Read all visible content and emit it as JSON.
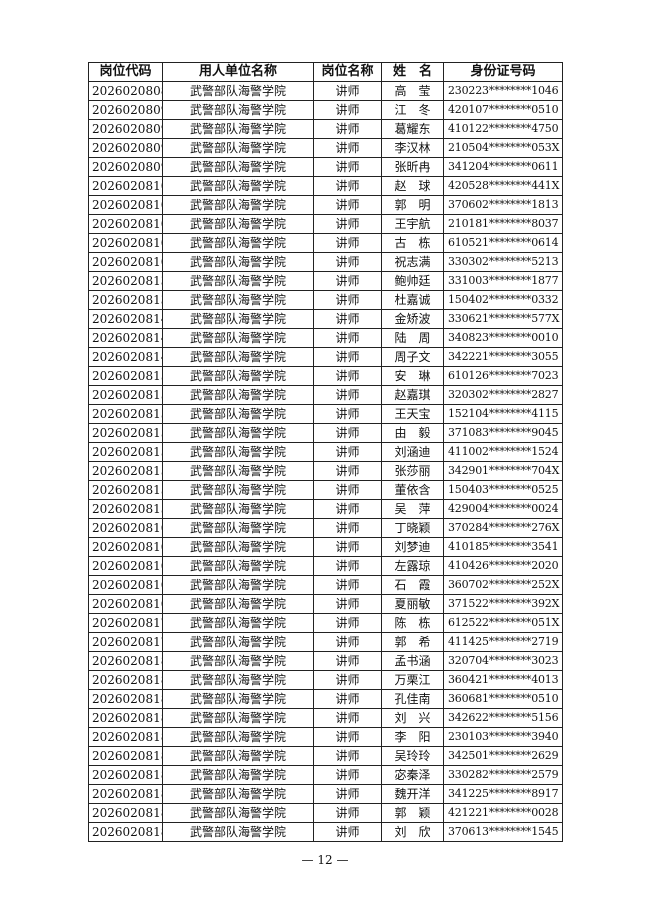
{
  "table": {
    "headers": [
      "岗位代码",
      "用人单位名称",
      "岗位名称",
      "姓　名",
      "身份证号码"
    ],
    "rows": [
      [
        "2026020808",
        "武警部队海警学院",
        "讲师",
        "高莹",
        "230223********1046"
      ],
      [
        "2026020809",
        "武警部队海警学院",
        "讲师",
        "江冬",
        "420107********0510"
      ],
      [
        "2026020809",
        "武警部队海警学院",
        "讲师",
        "葛耀东",
        "410122********4750"
      ],
      [
        "2026020809",
        "武警部队海警学院",
        "讲师",
        "李汉林",
        "210504********053X"
      ],
      [
        "2026020809",
        "武警部队海警学院",
        "讲师",
        "张昕冉",
        "341204********0611"
      ],
      [
        "2026020810",
        "武警部队海警学院",
        "讲师",
        "赵球",
        "420528********441X"
      ],
      [
        "2026020810",
        "武警部队海警学院",
        "讲师",
        "郭明",
        "370602********1813"
      ],
      [
        "2026020810",
        "武警部队海警学院",
        "讲师",
        "王宇航",
        "210181********8037"
      ],
      [
        "2026020810",
        "武警部队海警学院",
        "讲师",
        "古栋",
        "610521********0614"
      ],
      [
        "2026020810",
        "武警部队海警学院",
        "讲师",
        "祝志满",
        "330302********5213"
      ],
      [
        "2026020813",
        "武警部队海警学院",
        "讲师",
        "鲍帅廷",
        "331003********1877"
      ],
      [
        "2026020813",
        "武警部队海警学院",
        "讲师",
        "杜嘉诚",
        "150402********0332"
      ],
      [
        "2026020814",
        "武警部队海警学院",
        "讲师",
        "金矫波",
        "330621********577X"
      ],
      [
        "2026020814",
        "武警部队海警学院",
        "讲师",
        "陆周",
        "340823********0010"
      ],
      [
        "2026020814",
        "武警部队海警学院",
        "讲师",
        "周子文",
        "342221********3055"
      ],
      [
        "2026020815",
        "武警部队海警学院",
        "讲师",
        "安琳",
        "610126********7023"
      ],
      [
        "2026020815",
        "武警部队海警学院",
        "讲师",
        "赵嘉琪",
        "320302********2827"
      ],
      [
        "2026020815",
        "武警部队海警学院",
        "讲师",
        "王天宝",
        "152104********4115"
      ],
      [
        "2026020815",
        "武警部队海警学院",
        "讲师",
        "由毅",
        "371083********9045"
      ],
      [
        "2026020815",
        "武警部队海警学院",
        "讲师",
        "刘涵迪",
        "411002********1524"
      ],
      [
        "2026020815",
        "武警部队海警学院",
        "讲师",
        "张莎丽",
        "342901********704X"
      ],
      [
        "2026020815",
        "武警部队海警学院",
        "讲师",
        "董依含",
        "150403********0525"
      ],
      [
        "2026020815",
        "武警部队海警学院",
        "讲师",
        "吴萍",
        "429004********0024"
      ],
      [
        "2026020816",
        "武警部队海警学院",
        "讲师",
        "丁晓颖",
        "370284********276X"
      ],
      [
        "2026020816",
        "武警部队海警学院",
        "讲师",
        "刘梦迪",
        "410185********3541"
      ],
      [
        "2026020816",
        "武警部队海警学院",
        "讲师",
        "左露琼",
        "410426********2020"
      ],
      [
        "2026020816",
        "武警部队海警学院",
        "讲师",
        "石霞",
        "360702********252X"
      ],
      [
        "2026020816",
        "武警部队海警学院",
        "讲师",
        "夏丽敏",
        "371522********392X"
      ],
      [
        "2026020817",
        "武警部队海警学院",
        "讲师",
        "陈栋",
        "612522********051X"
      ],
      [
        "2026020817",
        "武警部队海警学院",
        "讲师",
        "郭希",
        "411425********2719"
      ],
      [
        "2026020818",
        "武警部队海警学院",
        "讲师",
        "孟书涵",
        "320704********3023"
      ],
      [
        "2026020818",
        "武警部队海警学院",
        "讲师",
        "万栗江",
        "360421********4013"
      ],
      [
        "2026020818",
        "武警部队海警学院",
        "讲师",
        "孔佳南",
        "360681********0510"
      ],
      [
        "2026020818",
        "武警部队海警学院",
        "讲师",
        "刘兴",
        "342622********5156"
      ],
      [
        "2026020818",
        "武警部队海警学院",
        "讲师",
        "李阳",
        "230103********3940"
      ],
      [
        "2026020818",
        "武警部队海警学院",
        "讲师",
        "吴玲玲",
        "342501********2629"
      ],
      [
        "2026020818",
        "武警部队海警学院",
        "讲师",
        "宓秦泽",
        "330282********2579"
      ],
      [
        "2026020818",
        "武警部队海警学院",
        "讲师",
        "魏开洋",
        "341225********8917"
      ],
      [
        "2026020818",
        "武警部队海警学院",
        "讲师",
        "郭颖",
        "421221********0028"
      ],
      [
        "2026020818",
        "武警部队海警学院",
        "讲师",
        "刘欣",
        "370613********1545"
      ]
    ]
  },
  "footer": {
    "page_number": "— 12 —"
  }
}
